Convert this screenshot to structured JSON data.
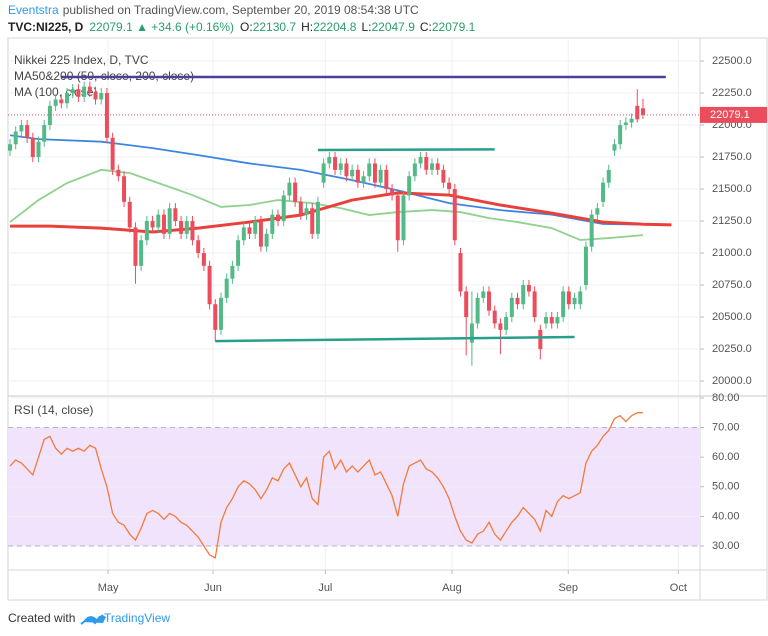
{
  "header": {
    "author": "Eventstra",
    "published": "published on TradingView.com, September 20, 2019 08:54:38 UTC",
    "symbol": "TVC:NI225, D",
    "quote": "22079.1 ▲ +34.6 (+0.16%)",
    "ohlc": [
      {
        "label": "O:",
        "value": "22130.7"
      },
      {
        "label": "H:",
        "value": "22204.8"
      },
      {
        "label": "L:",
        "value": "22047.9"
      },
      {
        "label": "C:",
        "value": "22079.1"
      }
    ]
  },
  "footer": {
    "created": "Created with",
    "brand": "TradingView"
  },
  "chart_data": [
    {
      "type": "candlestick",
      "title": "Nikkei 225 Index, D, TVC",
      "up_color": "#53b987",
      "down_color": "#eb4d5c",
      "x": [
        0,
        1,
        2,
        3,
        4,
        5,
        6,
        7,
        8,
        9,
        10,
        11,
        12,
        13,
        14,
        15,
        16,
        17,
        18,
        19,
        20,
        21,
        22,
        23,
        24,
        25,
        26,
        27,
        28,
        29,
        30,
        31,
        32,
        33,
        34,
        35,
        36,
        37,
        38,
        39,
        40,
        41,
        42,
        43,
        44,
        45,
        46,
        47,
        48,
        49,
        50,
        51,
        52,
        53,
        54,
        55,
        56,
        57,
        58,
        59,
        60,
        61,
        62,
        63,
        64,
        65,
        66,
        67,
        68,
        69,
        70,
        71,
        72,
        73,
        74,
        75,
        76,
        77,
        78,
        79,
        80,
        81,
        82,
        83,
        84,
        85,
        86,
        87,
        88,
        89,
        90,
        91,
        92,
        93,
        94,
        95,
        96,
        97,
        98,
        99,
        100,
        101,
        102,
        103,
        104,
        105,
        106,
        107,
        108,
        109,
        110,
        111
      ],
      "open": [
        21800,
        21850,
        21950,
        22000,
        21900,
        21750,
        21870,
        22000,
        22150,
        22200,
        22170,
        22250,
        22280,
        22220,
        22300,
        22260,
        22200,
        22250,
        21900,
        21650,
        21600,
        21400,
        21200,
        20900,
        21100,
        21250,
        21200,
        21300,
        21150,
        21350,
        21250,
        21150,
        21250,
        21100,
        21000,
        20900,
        20600,
        20400,
        20650,
        20800,
        20900,
        21100,
        21200,
        21150,
        21250,
        21050,
        21150,
        21300,
        21250,
        21450,
        21550,
        21400,
        21300,
        21350,
        21150,
        21550,
        21700,
        21750,
        21650,
        21700,
        21600,
        21650,
        21550,
        21600,
        21700,
        21550,
        21650,
        21500,
        21450,
        21100,
        21450,
        21600,
        21700,
        21750,
        21650,
        21700,
        21650,
        21550,
        21500,
        21000,
        20700,
        20300,
        20450,
        20650,
        20700,
        20550,
        20450,
        20400,
        20500,
        20650,
        20600,
        20750,
        20700,
        20400,
        20450,
        20500,
        20450,
        20500,
        20700,
        20600,
        20600,
        20750,
        21050,
        21300,
        21400,
        21550,
        21800,
        21850,
        22000,
        22020,
        22150,
        22130.7
      ],
      "high": [
        21890,
        21990,
        22040,
        22040,
        21940,
        21910,
        22040,
        22190,
        22240,
        22240,
        22290,
        22320,
        22320,
        22340,
        22340,
        22300,
        22290,
        22290,
        21940,
        21690,
        21640,
        21440,
        21240,
        21140,
        21290,
        21290,
        21340,
        21340,
        21390,
        21390,
        21290,
        21290,
        21290,
        21140,
        21040,
        20940,
        20640,
        20690,
        20840,
        20940,
        21140,
        21240,
        21240,
        21290,
        21290,
        21190,
        21340,
        21340,
        21490,
        21590,
        21590,
        21440,
        21390,
        21390,
        21440,
        21740,
        21790,
        21790,
        21740,
        21740,
        21690,
        21690,
        21640,
        21740,
        21740,
        21690,
        21690,
        21540,
        21490,
        21490,
        21640,
        21740,
        21790,
        21790,
        21740,
        21740,
        21690,
        21590,
        21540,
        21040,
        20740,
        20700,
        20690,
        20740,
        20740,
        20590,
        20490,
        20540,
        20690,
        20690,
        20790,
        20790,
        20740,
        20440,
        20540,
        20540,
        20540,
        20740,
        20740,
        20690,
        20740,
        21090,
        21340,
        21390,
        21590,
        21690,
        21890,
        22040,
        22060,
        22090,
        22280,
        22204.8
      ],
      "low": [
        21760,
        21810,
        21910,
        21860,
        21710,
        21710,
        21830,
        21960,
        22110,
        22130,
        22130,
        22210,
        22180,
        22180,
        22220,
        22160,
        22160,
        21860,
        21610,
        21560,
        21360,
        21160,
        20760,
        20860,
        21060,
        21160,
        21160,
        21110,
        21110,
        21210,
        21110,
        21110,
        21060,
        20960,
        20860,
        20560,
        20310,
        20360,
        20610,
        20760,
        20860,
        21060,
        21110,
        21110,
        21010,
        21010,
        21110,
        21210,
        21210,
        21410,
        21360,
        21260,
        21260,
        21110,
        21110,
        21510,
        21660,
        21610,
        21610,
        21560,
        21560,
        21510,
        21510,
        21560,
        21510,
        21510,
        21460,
        21410,
        21010,
        21060,
        21410,
        21560,
        21660,
        21610,
        21610,
        21610,
        21510,
        21460,
        21060,
        20660,
        20200,
        20120,
        20410,
        20610,
        20510,
        20410,
        20210,
        20360,
        20460,
        20560,
        20560,
        20660,
        20460,
        20170,
        20410,
        20410,
        20410,
        20460,
        20560,
        20560,
        20560,
        20710,
        21010,
        21260,
        21360,
        21510,
        21760,
        21810,
        21960,
        21980,
        22020,
        22047.9
      ],
      "close": [
        21850,
        21950,
        22000,
        21900,
        21750,
        21870,
        22000,
        22150,
        22200,
        22170,
        22250,
        22280,
        22220,
        22300,
        22260,
        22200,
        22250,
        21900,
        21650,
        21600,
        21400,
        21200,
        20900,
        21100,
        21250,
        21200,
        21300,
        21150,
        21350,
        21250,
        21150,
        21250,
        21100,
        21000,
        20900,
        20600,
        20400,
        20650,
        20800,
        20900,
        21100,
        21200,
        21150,
        21250,
        21050,
        21150,
        21300,
        21250,
        21450,
        21550,
        21400,
        21300,
        21350,
        21150,
        21400,
        21700,
        21750,
        21650,
        21700,
        21600,
        21650,
        21550,
        21600,
        21700,
        21550,
        21650,
        21500,
        21450,
        21100,
        21450,
        21600,
        21700,
        21750,
        21650,
        21700,
        21650,
        21550,
        21500,
        21100,
        20700,
        20500,
        20450,
        20650,
        20700,
        20550,
        20450,
        20400,
        20500,
        20650,
        20600,
        20750,
        20700,
        20500,
        20250,
        20500,
        20450,
        20500,
        20700,
        20600,
        20650,
        20700,
        21050,
        21300,
        21350,
        21550,
        21650,
        21850,
        22000,
        22020,
        22050,
        22044.5,
        22079.1
      ],
      "indicators": [
        {
          "name": "MA50&200 (50, close, 200, close)",
          "lines": [
            {
              "color": "#8fd18f",
              "x": [
                0,
                5,
                10,
                16,
                21,
                26,
                32,
                37,
                42,
                47,
                53,
                58,
                63,
                68,
                74,
                79,
                84,
                89,
                95,
                100,
                105,
                111
              ],
              "values": [
                21242,
                21414,
                21547,
                21650,
                21625,
                21547,
                21453,
                21360,
                21375,
                21414,
                21390,
                21351,
                21297,
                21320,
                21336,
                21320,
                21273,
                21242,
                21195,
                21102,
                21117,
                21140
              ]
            },
            {
              "color": "#3d86e0",
              "x": [
                0,
                5,
                16,
                25,
                33,
                42,
                51,
                60,
                68,
                77,
                86,
                95,
                104,
                111,
                116
              ],
              "values": [
                21920,
                21890,
                21870,
                21820,
                21765,
                21700,
                21650,
                21570,
                21490,
                21390,
                21335,
                21300,
                21227,
                21222,
                21220
              ]
            }
          ]
        },
        {
          "name": "MA (100, close)",
          "lines": [
            {
              "color": "#e8413a",
              "x": [
                0,
                7,
                16,
                25,
                33,
                42,
                51,
                60,
                68,
                77,
                86,
                95,
                104,
                111,
                116
              ],
              "values": [
                21210,
                21210,
                21195,
                21164,
                21195,
                21242,
                21297,
                21414,
                21470,
                21453,
                21375,
                21312,
                21242,
                21225,
                21220
              ]
            }
          ]
        }
      ],
      "drawings": [
        {
          "color": "#4b3f9a",
          "x": [
            9,
            115
          ],
          "values": [
            22375,
            22375
          ]
        },
        {
          "color": "#26a08a",
          "x": [
            54,
            85
          ],
          "values": [
            21805,
            21810
          ]
        },
        {
          "color": "#26a08a",
          "x": [
            36,
            99
          ],
          "values": [
            20312,
            20344
          ]
        }
      ],
      "xlim": [
        -0.35,
        121
      ],
      "xticks": [
        {
          "value": 17.2,
          "label": "May"
        },
        {
          "value": 35.6,
          "label": "Jun"
        },
        {
          "value": 55.3,
          "label": "Jul"
        },
        {
          "value": 77.5,
          "label": "Aug"
        },
        {
          "value": 97.9,
          "label": "Sep"
        },
        {
          "value": 117.2,
          "label": "Oct"
        }
      ],
      "ylim": [
        19891,
        22680
      ],
      "yticks": [
        {
          "value": 20000,
          "label": "20000.0"
        },
        {
          "value": 20250,
          "label": "20250.0"
        },
        {
          "value": 20500,
          "label": "20500.0"
        },
        {
          "value": 20750,
          "label": "20750.0"
        },
        {
          "value": 21000,
          "label": "21000.0"
        },
        {
          "value": 21250,
          "label": "21250.0"
        },
        {
          "value": 21500,
          "label": "21500.0"
        },
        {
          "value": 21750,
          "label": "21750.0"
        },
        {
          "value": 22000,
          "label": "22000.0"
        },
        {
          "value": 22250,
          "label": "22250.0"
        },
        {
          "value": 22500,
          "label": "22500.0"
        }
      ],
      "grid": true
    },
    {
      "type": "line",
      "title": "RSI (14, close)",
      "color": "#f37a3c",
      "band": [
        30,
        70
      ],
      "band_color": "#f1e3fb",
      "x": [
        0,
        1,
        2,
        3,
        4,
        5,
        6,
        7,
        8,
        9,
        10,
        11,
        12,
        13,
        14,
        15,
        16,
        17,
        18,
        19,
        20,
        21,
        22,
        23,
        24,
        25,
        26,
        27,
        28,
        29,
        30,
        31,
        32,
        33,
        34,
        35,
        36,
        37,
        38,
        39,
        40,
        41,
        42,
        43,
        44,
        45,
        46,
        47,
        48,
        49,
        50,
        51,
        52,
        53,
        54,
        55,
        56,
        57,
        58,
        59,
        60,
        61,
        62,
        63,
        64,
        65,
        66,
        67,
        68,
        69,
        70,
        71,
        72,
        73,
        74,
        75,
        76,
        77,
        78,
        79,
        80,
        81,
        82,
        83,
        84,
        85,
        86,
        87,
        88,
        89,
        90,
        91,
        92,
        93,
        94,
        95,
        96,
        97,
        98,
        99,
        100,
        101,
        102,
        103,
        104,
        105,
        106,
        107,
        108,
        109,
        110,
        111
      ],
      "values": [
        57,
        59,
        58,
        56,
        54,
        60,
        66,
        67,
        63,
        61,
        63,
        62,
        63,
        62,
        64,
        63,
        56,
        50,
        41,
        38,
        37,
        34,
        32,
        36,
        41,
        42,
        41,
        39,
        41,
        40,
        38,
        37,
        35,
        33,
        30,
        27,
        26,
        38,
        43,
        46,
        50,
        52,
        51,
        49,
        46,
        49,
        53,
        52,
        56,
        58,
        54,
        50,
        53,
        46,
        44,
        60,
        62,
        56,
        59,
        55,
        57,
        55,
        57,
        59,
        54,
        55,
        51,
        47,
        40,
        51,
        57,
        58,
        59,
        56,
        55,
        53,
        50,
        46,
        40,
        35,
        32,
        31,
        34,
        35,
        38,
        34,
        32,
        35,
        38,
        40,
        43,
        41,
        39,
        35,
        42,
        40,
        45,
        47,
        46,
        47,
        48,
        58,
        62,
        64,
        67,
        69,
        73,
        74,
        72,
        74,
        75,
        75
      ],
      "xlim": [
        -0.35,
        121
      ],
      "ylim": [
        21.9,
        80.3
      ],
      "yticks": [
        {
          "value": 30,
          "label": "30.00"
        },
        {
          "value": 40,
          "label": "40.00"
        },
        {
          "value": 50,
          "label": "50.00"
        },
        {
          "value": 60,
          "label": "60.00"
        },
        {
          "value": 70,
          "label": "70.00"
        },
        {
          "value": 80,
          "label": "80.00"
        }
      ],
      "grid": true
    }
  ]
}
